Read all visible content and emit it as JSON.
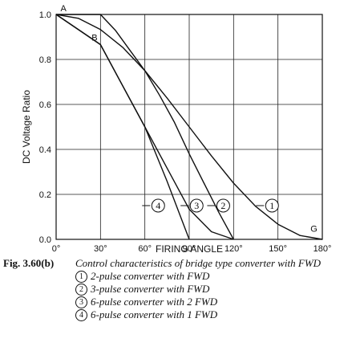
{
  "chart_data": {
    "type": "line",
    "title": "",
    "xlabel": "FIRING ANGLE",
    "ylabel": "DC Voltage Ratio",
    "xlim": [
      0,
      180
    ],
    "ylim": [
      0,
      1.0
    ],
    "xticks": [
      "0°",
      "30°",
      "60°",
      "90°",
      "120°",
      "150°",
      "180°"
    ],
    "yticks": [
      "0.0",
      "0.2",
      "0.4",
      "0.6",
      "0.8",
      "1.0"
    ],
    "grid": true,
    "series": [
      {
        "name": "1",
        "x": [
          0,
          15,
          30,
          45,
          60,
          75,
          90,
          105,
          120,
          135,
          150,
          165,
          180
        ],
        "y": [
          1.0,
          0.983,
          0.933,
          0.854,
          0.75,
          0.629,
          0.5,
          0.371,
          0.25,
          0.146,
          0.067,
          0.017,
          0.0
        ]
      },
      {
        "name": "2",
        "x": [
          0,
          30,
          40,
          50,
          60,
          70,
          80,
          90,
          100,
          110,
          120
        ],
        "y": [
          1.0,
          1.0,
          0.93,
          0.84,
          0.75,
          0.64,
          0.52,
          0.38,
          0.25,
          0.12,
          0.0
        ]
      },
      {
        "name": "3",
        "x": [
          0,
          30,
          45,
          60,
          75,
          90,
          105,
          120
        ],
        "y": [
          1.0,
          0.866,
          0.683,
          0.5,
          0.317,
          0.134,
          0.034,
          0.0
        ]
      },
      {
        "name": "4",
        "x": [
          0,
          30,
          45,
          60,
          75,
          90
        ],
        "y": [
          1.0,
          0.866,
          0.683,
          0.5,
          0.259,
          0.0
        ]
      }
    ],
    "curve_labels": [
      {
        "text": "1",
        "x": 146,
        "y": 0.15
      },
      {
        "text": "2",
        "x": 113,
        "y": 0.15
      },
      {
        "text": "3",
        "x": 95,
        "y": 0.15
      },
      {
        "text": "4",
        "x": 69,
        "y": 0.15
      }
    ],
    "point_labels": [
      {
        "text": "A",
        "x": 3,
        "y": 1.0
      },
      {
        "text": "B",
        "x": 24,
        "y": 0.87
      },
      {
        "text": "G",
        "x": 172,
        "y": 0.02
      }
    ]
  },
  "caption": {
    "fig_id": "Fig. 3.60(b)",
    "title": "Control characteristics of bridge type converter with FWD",
    "legend": [
      {
        "num": "1",
        "text": "2-pulse converter with FWD"
      },
      {
        "num": "2",
        "text": "3-pulse converter with FWD"
      },
      {
        "num": "3",
        "text": "6-pulse converter with 2 FWD"
      },
      {
        "num": "4",
        "text": "6-pulse converter with 1 FWD"
      }
    ]
  }
}
